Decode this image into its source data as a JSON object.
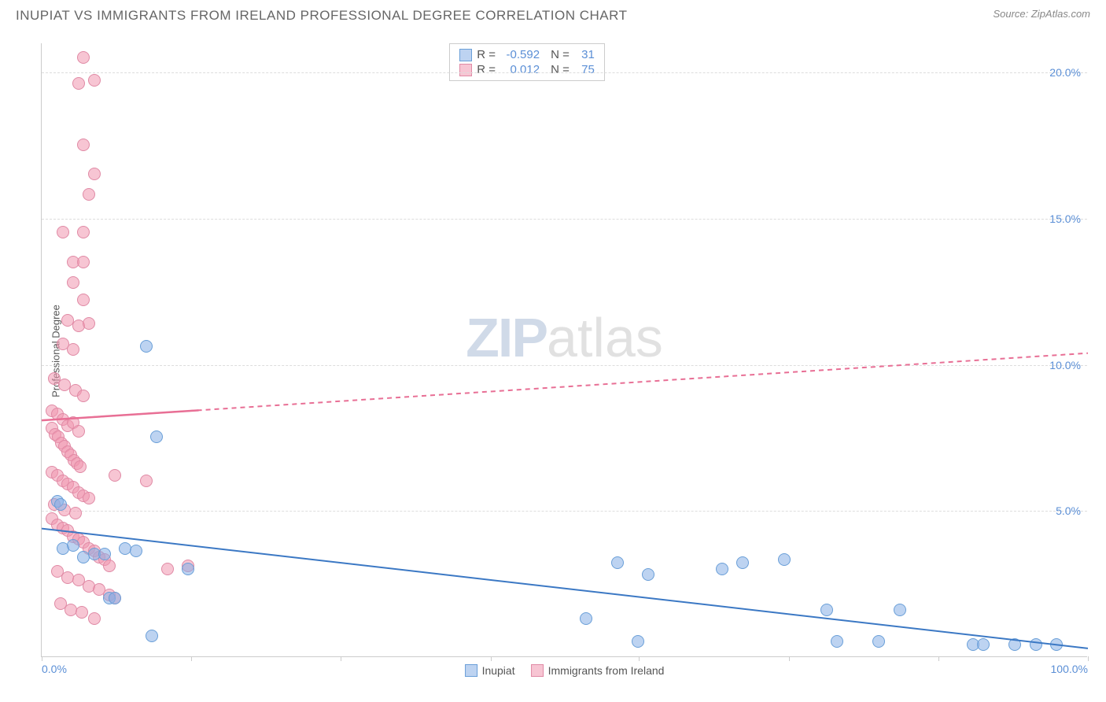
{
  "title": "INUPIAT VS IMMIGRANTS FROM IRELAND PROFESSIONAL DEGREE CORRELATION CHART",
  "source": "Source: ZipAtlas.com",
  "ylabel": "Professional Degree",
  "watermark_zip": "ZIP",
  "watermark_atlas": "atlas",
  "chart": {
    "type": "scatter",
    "xlim": [
      0,
      100
    ],
    "ylim": [
      0,
      21
    ],
    "xticks": [
      0,
      14.3,
      28.6,
      42.9,
      57.1,
      71.4,
      85.7,
      100
    ],
    "xtick_labels_shown": {
      "0": "0.0%",
      "100": "100.0%"
    },
    "yticks": [
      5,
      10,
      15,
      20
    ],
    "ytick_labels": [
      "5.0%",
      "10.0%",
      "15.0%",
      "20.0%"
    ],
    "grid_color": "#dddddd",
    "axis_color": "#cccccc",
    "background_color": "#ffffff"
  },
  "series": [
    {
      "name": "Inupiat",
      "fill": "rgba(135,175,230,0.55)",
      "stroke": "#6a9fd8",
      "line_color": "#3b78c4",
      "line_dash": "none",
      "r_value": "-0.592",
      "n_value": "31",
      "trend": {
        "x1": 0,
        "y1": 4.4,
        "x2": 100,
        "y2": 0.3
      },
      "points": [
        [
          1.5,
          5.3
        ],
        [
          1.8,
          5.2
        ],
        [
          10,
          10.6
        ],
        [
          11,
          7.5
        ],
        [
          2,
          3.7
        ],
        [
          3,
          3.8
        ],
        [
          4,
          3.4
        ],
        [
          5,
          3.5
        ],
        [
          6,
          3.5
        ],
        [
          6.5,
          2.0
        ],
        [
          7,
          2.0
        ],
        [
          8,
          3.7
        ],
        [
          9,
          3.6
        ],
        [
          10.5,
          0.7
        ],
        [
          14,
          3.0
        ],
        [
          55,
          3.2
        ],
        [
          58,
          2.8
        ],
        [
          52,
          1.3
        ],
        [
          57,
          0.5
        ],
        [
          65,
          3.0
        ],
        [
          67,
          3.2
        ],
        [
          71,
          3.3
        ],
        [
          75,
          1.6
        ],
        [
          76,
          0.5
        ],
        [
          80,
          0.5
        ],
        [
          82,
          1.6
        ],
        [
          89,
          0.4
        ],
        [
          90,
          0.4
        ],
        [
          93,
          0.4
        ],
        [
          95,
          0.4
        ],
        [
          97,
          0.4
        ]
      ]
    },
    {
      "name": "Immigrants from Ireland",
      "fill": "rgba(240,150,175,0.55)",
      "stroke": "#e08aa5",
      "line_color": "#e86f95",
      "line_dash": "dashed",
      "r_value": "0.012",
      "n_value": "75",
      "trend": {
        "x1": 0,
        "y1": 8.1,
        "x2": 100,
        "y2": 10.4
      },
      "points": [
        [
          4,
          20.5
        ],
        [
          3.5,
          19.6
        ],
        [
          5,
          19.7
        ],
        [
          4,
          17.5
        ],
        [
          5,
          16.5
        ],
        [
          4.5,
          15.8
        ],
        [
          2,
          14.5
        ],
        [
          4,
          14.5
        ],
        [
          3,
          13.5
        ],
        [
          4,
          13.5
        ],
        [
          3,
          12.8
        ],
        [
          4,
          12.2
        ],
        [
          2.5,
          11.5
        ],
        [
          3.5,
          11.3
        ],
        [
          4.5,
          11.4
        ],
        [
          2,
          10.7
        ],
        [
          3,
          10.5
        ],
        [
          1.2,
          9.5
        ],
        [
          2.2,
          9.3
        ],
        [
          3.2,
          9.1
        ],
        [
          4,
          8.9
        ],
        [
          1,
          8.4
        ],
        [
          1.5,
          8.3
        ],
        [
          2,
          8.1
        ],
        [
          2.5,
          7.9
        ],
        [
          3,
          8.0
        ],
        [
          3.5,
          7.7
        ],
        [
          1,
          7.8
        ],
        [
          1.3,
          7.6
        ],
        [
          1.6,
          7.5
        ],
        [
          1.9,
          7.3
        ],
        [
          2.2,
          7.2
        ],
        [
          2.5,
          7.0
        ],
        [
          2.8,
          6.9
        ],
        [
          3.1,
          6.7
        ],
        [
          3.4,
          6.6
        ],
        [
          3.7,
          6.5
        ],
        [
          1,
          6.3
        ],
        [
          1.5,
          6.2
        ],
        [
          2,
          6.0
        ],
        [
          2.5,
          5.9
        ],
        [
          3,
          5.8
        ],
        [
          3.5,
          5.6
        ],
        [
          4,
          5.5
        ],
        [
          4.5,
          5.4
        ],
        [
          1.2,
          5.2
        ],
        [
          2.2,
          5.0
        ],
        [
          3.2,
          4.9
        ],
        [
          1,
          4.7
        ],
        [
          1.5,
          4.5
        ],
        [
          2,
          4.4
        ],
        [
          2.5,
          4.3
        ],
        [
          3,
          4.1
        ],
        [
          3.5,
          4.0
        ],
        [
          4,
          3.9
        ],
        [
          4.5,
          3.7
        ],
        [
          5,
          3.6
        ],
        [
          5.5,
          3.4
        ],
        [
          6,
          3.3
        ],
        [
          6.5,
          3.1
        ],
        [
          1.5,
          2.9
        ],
        [
          2.5,
          2.7
        ],
        [
          3.5,
          2.6
        ],
        [
          4.5,
          2.4
        ],
        [
          5.5,
          2.3
        ],
        [
          6.5,
          2.1
        ],
        [
          7,
          2.0
        ],
        [
          1.8,
          1.8
        ],
        [
          2.8,
          1.6
        ],
        [
          3.8,
          1.5
        ],
        [
          5,
          1.3
        ],
        [
          7,
          6.2
        ],
        [
          10,
          6.0
        ],
        [
          12,
          3.0
        ],
        [
          14,
          3.1
        ]
      ]
    }
  ],
  "legend": {
    "label_inupiat": "Inupiat",
    "label_ireland": "Immigrants from Ireland"
  }
}
